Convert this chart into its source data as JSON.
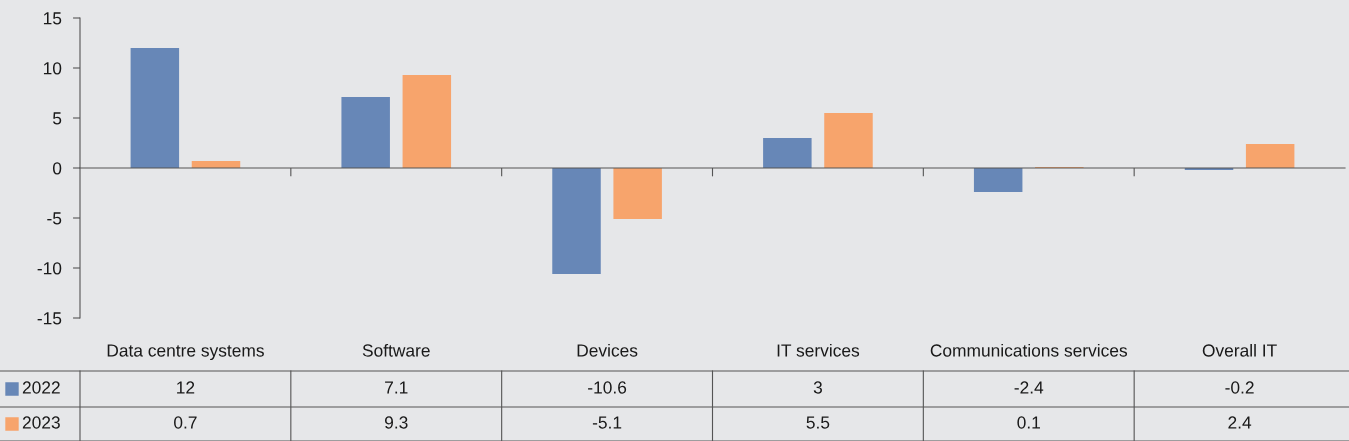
{
  "chart_data": {
    "type": "bar",
    "categories": [
      "Data centre systems",
      "Software",
      "Devices",
      "IT services",
      "Communications services",
      "Overall IT"
    ],
    "series": [
      {
        "name": "2022",
        "color": "#6787b7",
        "values": [
          12,
          7.1,
          -10.6,
          3,
          -2.4,
          -0.2
        ]
      },
      {
        "name": "2023",
        "color": "#f7a46c",
        "values": [
          0.7,
          9.3,
          -5.1,
          5.5,
          0.1,
          2.4
        ]
      }
    ],
    "ylim": [
      -15,
      15
    ],
    "yticks": [
      -15,
      -10,
      -5,
      0,
      5,
      10,
      15
    ],
    "data_labels": true,
    "legend": "bottom left"
  }
}
